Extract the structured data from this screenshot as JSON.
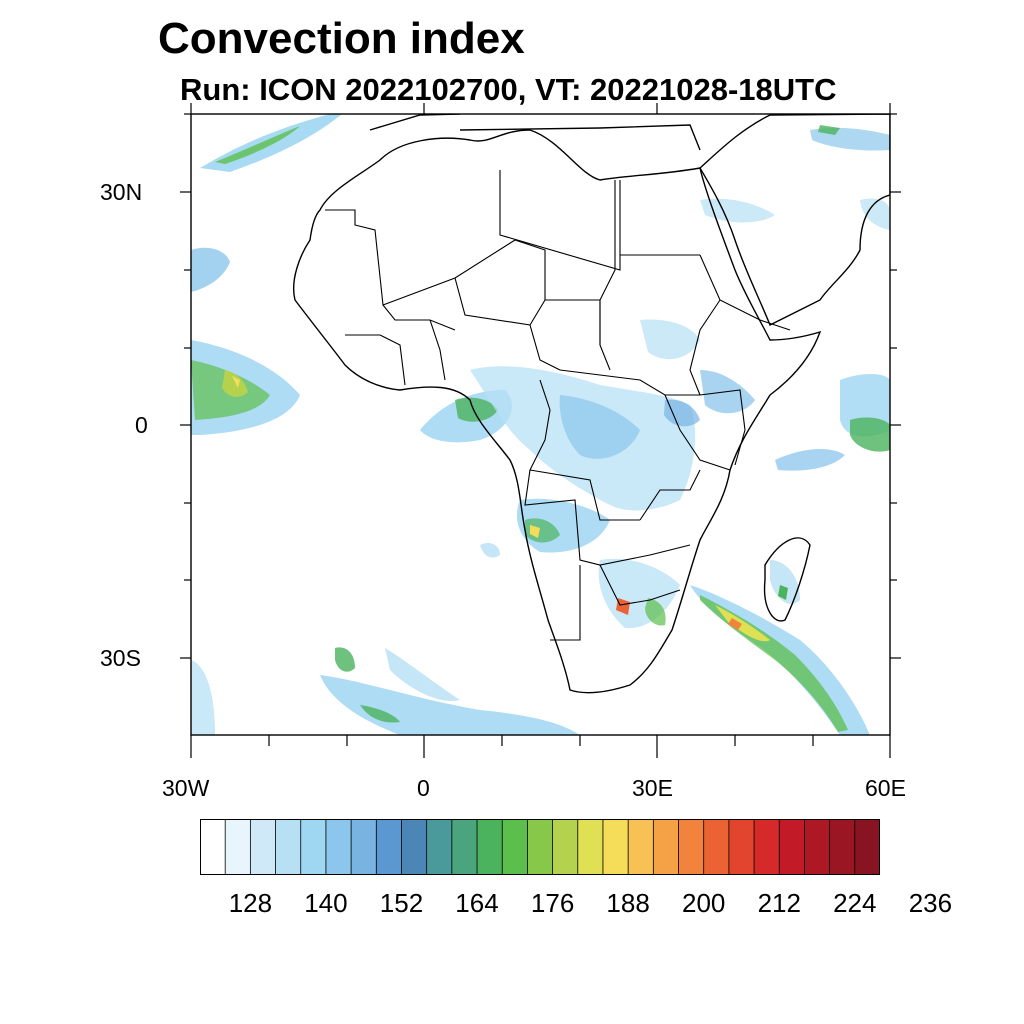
{
  "title": "Convection index",
  "subtitle": "Run: ICON 2022102700,  VT: 20221028-18UTC",
  "map": {
    "lat_labels": [
      "30N",
      "0",
      "30S"
    ],
    "lon_labels": [
      "30W",
      "0",
      "30E",
      "60E"
    ],
    "lon_range": [
      -30,
      60
    ],
    "lat_range": [
      -40,
      40
    ]
  },
  "colorbar": {
    "labels": [
      "128",
      "140",
      "152",
      "164",
      "176",
      "188",
      "200",
      "212",
      "224",
      "236"
    ],
    "colors": [
      "#ffffff",
      "#e8f5fc",
      "#cfe9f8",
      "#b7e0f5",
      "#9fd6f2",
      "#8cc6ec",
      "#78b3e2",
      "#5b97d0",
      "#4b86b7",
      "#4a9a9c",
      "#4aa57e",
      "#4bb35d",
      "#5cbf4c",
      "#87c84b",
      "#b4d24d",
      "#dfe053",
      "#f6dd59",
      "#f8c154",
      "#f5a145",
      "#f2833c",
      "#ec6333",
      "#e2442d",
      "#d5292a",
      "#c21b27",
      "#ae1825",
      "#9a1622",
      "#871420"
    ]
  },
  "colors": {
    "land_outline": "#000000",
    "background": "#ffffff"
  }
}
